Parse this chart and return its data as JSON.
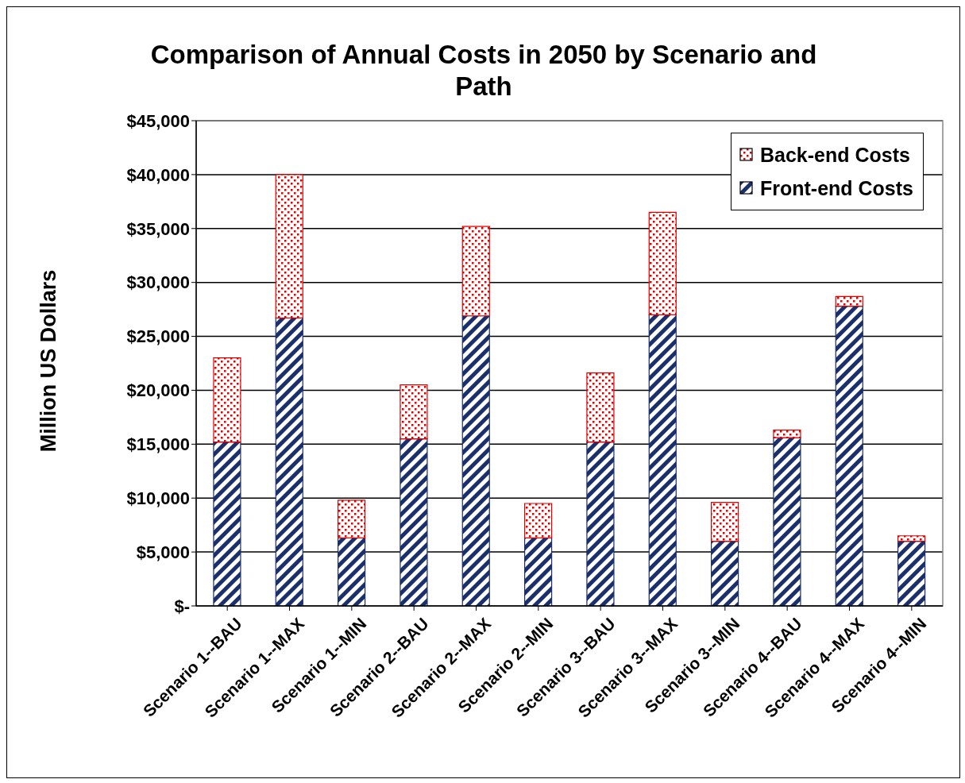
{
  "chart_data": {
    "type": "bar",
    "title": "Comparison of Annual Costs in 2050 by Scenario and Path",
    "ylabel": "Million US Dollars",
    "categories": [
      "Scenario 1--BAU",
      "Scenario 1--MAX",
      "Scenario 1--MIN",
      "Scenario 2--BAU",
      "Scenario 2--MAX",
      "Scenario 2--MIN",
      "Scenario 3--BAU",
      "Scenario 3--MAX",
      "Scenario 3--MIN",
      "Scenario 4--BAU",
      "Scenario 4--MAX",
      "Scenario 4--MIN"
    ],
    "series": [
      {
        "name": "Front-end Costs",
        "color": "#1a2f6b",
        "values": [
          15200,
          26700,
          6300,
          15500,
          26900,
          6300,
          15200,
          27000,
          6000,
          15600,
          27800,
          6000
        ]
      },
      {
        "name": "Back-end Costs",
        "color": "#e00000",
        "values": [
          7800,
          13300,
          3500,
          5000,
          8300,
          3200,
          6400,
          9500,
          3600,
          700,
          900,
          500
        ]
      }
    ],
    "stacked": true,
    "ylim": [
      0,
      45000
    ],
    "yticks": [
      {
        "value": 0,
        "label": "$-"
      },
      {
        "value": 5000,
        "label": "$5,000"
      },
      {
        "value": 10000,
        "label": "$10,000"
      },
      {
        "value": 15000,
        "label": "$15,000"
      },
      {
        "value": 20000,
        "label": "$20,000"
      },
      {
        "value": 25000,
        "label": "$25,000"
      },
      {
        "value": 30000,
        "label": "$30,000"
      },
      {
        "value": 35000,
        "label": "$35,000"
      },
      {
        "value": 40000,
        "label": "$40,000"
      },
      {
        "value": 45000,
        "label": "$45,000"
      }
    ],
    "grid": "y",
    "legend": "top right"
  }
}
